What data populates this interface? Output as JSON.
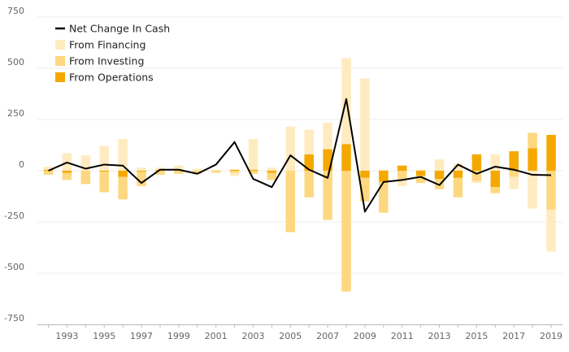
{
  "chart_data": {
    "type": "bar",
    "stacking": "diverging-stacked",
    "title": "",
    "xlabel": "",
    "ylabel": "",
    "ylim": [
      -750,
      750
    ],
    "y_ticks": [
      750,
      500,
      250,
      0,
      -250,
      -500,
      -750
    ],
    "x_tick_labels": [
      "1993",
      "1995",
      "1997",
      "1999",
      "2001",
      "2003",
      "2005",
      "2007",
      "2009",
      "2011",
      "2013",
      "2015",
      "2017",
      "2019"
    ],
    "categories": [
      "1992",
      "1993",
      "1994",
      "1995",
      "1996",
      "1997",
      "1998",
      "1999",
      "2000",
      "2001",
      "2002",
      "2003",
      "2004",
      "2005",
      "2006",
      "2007",
      "2008",
      "2009",
      "2010",
      "2011",
      "2012",
      "2013",
      "2014",
      "2015",
      "2016",
      "2017",
      "2018",
      "2019"
    ],
    "grid": "horizontal",
    "legend_position": "top-left",
    "series": [
      {
        "name": "From Operations",
        "kind": "bar",
        "color": "#F5A800",
        "values": [
          5,
          -10,
          0,
          -5,
          -30,
          -5,
          5,
          5,
          0,
          0,
          5,
          5,
          -10,
          0,
          80,
          105,
          130,
          -35,
          -55,
          25,
          -25,
          -40,
          -35,
          80,
          -80,
          95,
          110,
          175
        ]
      },
      {
        "name": "From Investing",
        "kind": "bar",
        "color": "#FDD880",
        "values": [
          -20,
          -35,
          -65,
          -100,
          -110,
          -70,
          -20,
          -15,
          -15,
          -10,
          -10,
          -15,
          -35,
          -300,
          -130,
          -240,
          -590,
          -115,
          -150,
          -45,
          -35,
          -50,
          -95,
          -50,
          -30,
          -30,
          75,
          -190
        ]
      },
      {
        "name": "From Financing",
        "kind": "bar",
        "color": "#FFEBC0",
        "values": [
          15,
          85,
          75,
          120,
          155,
          15,
          10,
          20,
          10,
          5,
          -15,
          150,
          15,
          215,
          120,
          130,
          420,
          450,
          5,
          -30,
          5,
          55,
          35,
          -10,
          80,
          -60,
          -185,
          -205
        ]
      },
      {
        "name": "Net Change In Cash",
        "kind": "line",
        "color": "#000000",
        "values": [
          0,
          40,
          10,
          30,
          25,
          -60,
          5,
          5,
          -15,
          30,
          140,
          -40,
          -80,
          75,
          5,
          -35,
          350,
          -200,
          -55,
          -45,
          -30,
          -70,
          30,
          -15,
          20,
          5,
          -20,
          -22
        ]
      }
    ]
  }
}
